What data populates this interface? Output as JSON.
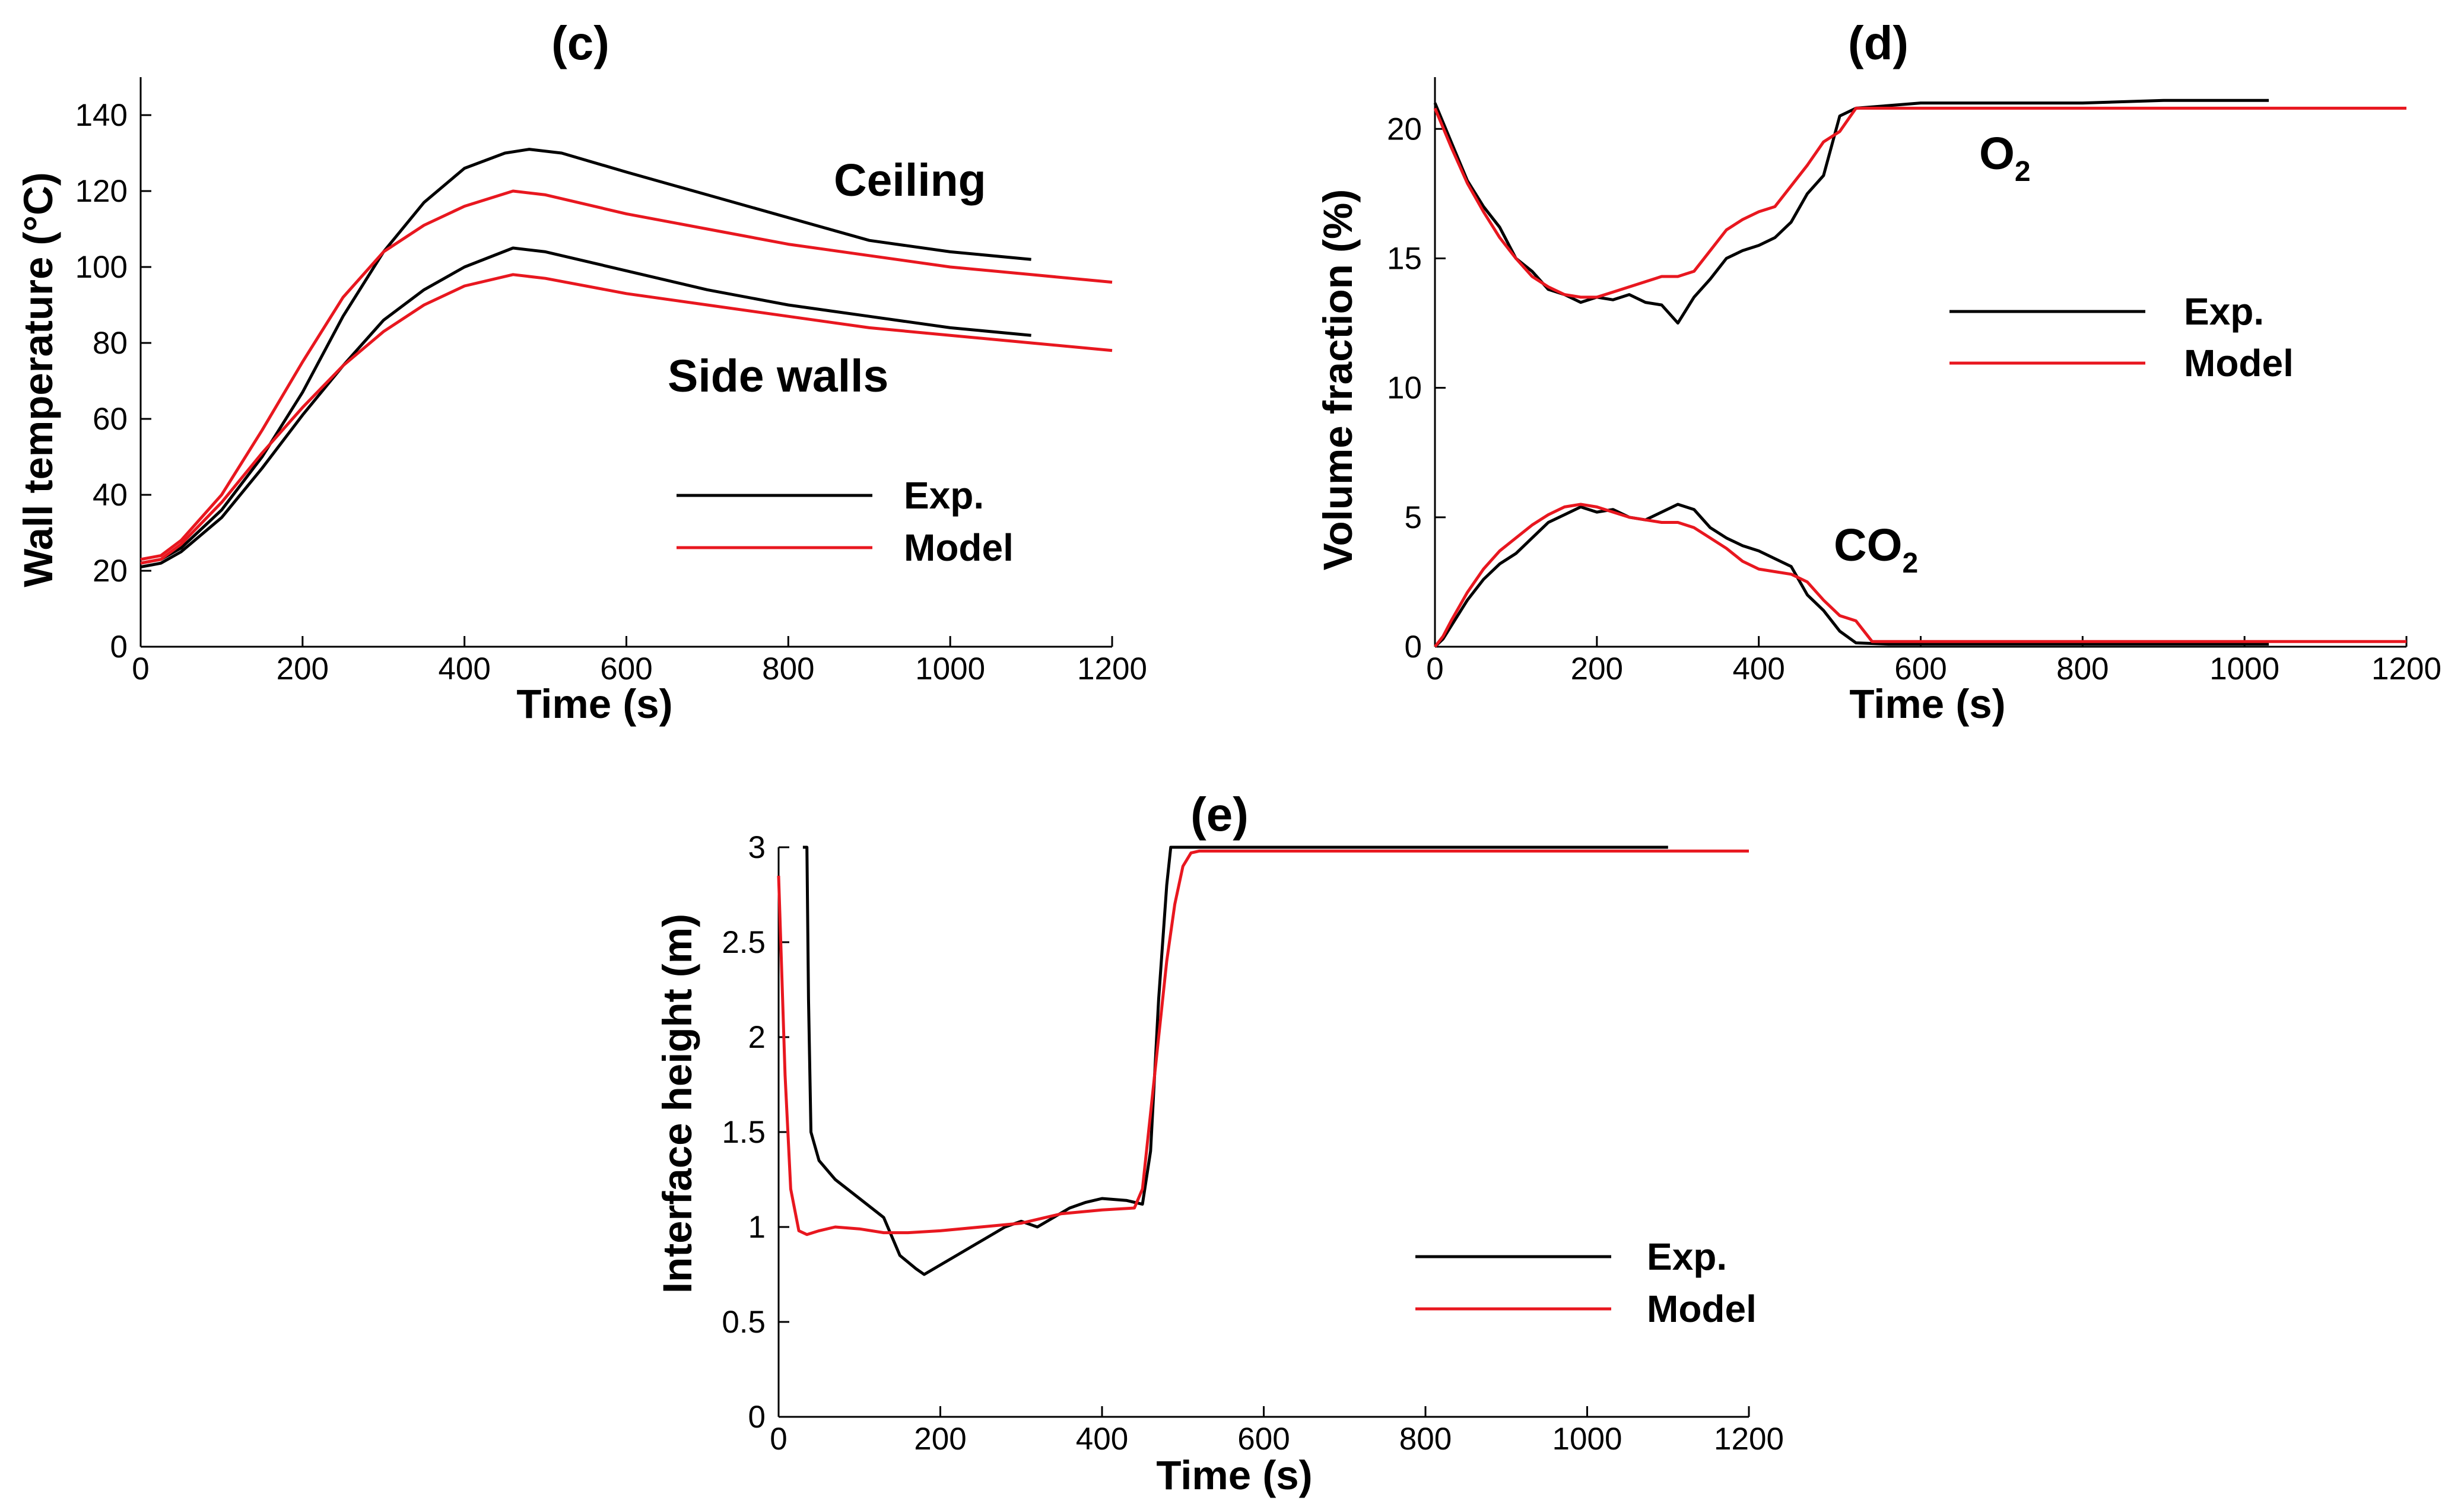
{
  "chart_data": [
    {
      "type": "line",
      "panel": "c",
      "title": "(c)",
      "xlabel": "Time (s)",
      "ylabel": "Wall temperature (°C)",
      "xlim": [
        0,
        1200
      ],
      "ylim": [
        0,
        150
      ],
      "xticks": [
        0,
        200,
        400,
        600,
        800,
        1000,
        1200
      ],
      "yticks": [
        0,
        20,
        40,
        60,
        80,
        100,
        120,
        140
      ],
      "annotations": {
        "ceiling": "Ceiling",
        "side_walls": "Side walls"
      },
      "legend": {
        "exp": "Exp.",
        "model": "Model",
        "position": "center-right"
      },
      "series": [
        {
          "name": "Exp. ceiling",
          "color": "#000000",
          "x": [
            0,
            25,
            50,
            100,
            150,
            200,
            250,
            300,
            350,
            400,
            450,
            480,
            520,
            600,
            700,
            800,
            900,
            1000,
            1100
          ],
          "y": [
            22,
            23,
            26,
            36,
            50,
            67,
            87,
            104,
            117,
            126,
            130,
            131,
            130,
            125,
            119,
            113,
            107,
            104,
            102
          ]
        },
        {
          "name": "Model ceiling",
          "color": "#e8171f",
          "x": [
            0,
            25,
            50,
            100,
            150,
            200,
            250,
            300,
            350,
            400,
            460,
            500,
            600,
            700,
            800,
            900,
            1000,
            1100,
            1200
          ],
          "y": [
            23,
            24,
            28,
            40,
            57,
            75,
            92,
            104,
            111,
            116,
            120,
            119,
            114,
            110,
            106,
            103,
            100,
            98,
            96
          ]
        },
        {
          "name": "Exp. side walls",
          "color": "#000000",
          "x": [
            0,
            25,
            50,
            100,
            150,
            200,
            250,
            300,
            350,
            400,
            460,
            500,
            600,
            700,
            800,
            900,
            1000,
            1100
          ],
          "y": [
            21,
            22,
            25,
            34,
            47,
            61,
            74,
            86,
            94,
            100,
            105,
            104,
            99,
            94,
            90,
            87,
            84,
            82
          ]
        },
        {
          "name": "Model side walls",
          "color": "#e8171f",
          "x": [
            0,
            25,
            50,
            100,
            150,
            200,
            250,
            300,
            350,
            400,
            460,
            500,
            600,
            700,
            800,
            900,
            1000,
            1100,
            1200
          ],
          "y": [
            22,
            23,
            27,
            38,
            51,
            63,
            74,
            83,
            90,
            95,
            98,
            97,
            93,
            90,
            87,
            84,
            82,
            80,
            78
          ]
        }
      ]
    },
    {
      "type": "line",
      "panel": "d",
      "title": "(d)",
      "xlabel": "Time (s)",
      "ylabel": "Volume fraction (%)",
      "xlim": [
        0,
        1200
      ],
      "ylim": [
        0,
        22
      ],
      "xticks": [
        0,
        200,
        400,
        600,
        800,
        1000,
        1200
      ],
      "yticks": [
        0,
        5,
        10,
        15,
        20
      ],
      "annotations": {
        "o2_main": "O",
        "o2_sub": "2",
        "co2_main": "CO",
        "co2_sub": "2"
      },
      "legend": {
        "exp": "Exp.",
        "model": "Model",
        "position": "upper-right"
      },
      "series": [
        {
          "name": "Exp. O2",
          "color": "#000000",
          "x": [
            0,
            20,
            40,
            60,
            80,
            100,
            120,
            140,
            160,
            180,
            200,
            220,
            240,
            260,
            280,
            300,
            320,
            340,
            360,
            380,
            400,
            420,
            440,
            460,
            480,
            500,
            520,
            560,
            600,
            700,
            800,
            900,
            1030
          ],
          "y": [
            21,
            19.5,
            18,
            17,
            16.2,
            15,
            14.5,
            13.8,
            13.6,
            13.3,
            13.5,
            13.4,
            13.6,
            13.3,
            13.2,
            12.5,
            13.5,
            14.2,
            15,
            15.3,
            15.5,
            15.8,
            16.4,
            17.5,
            18.2,
            20.5,
            20.8,
            20.9,
            21.0,
            21.0,
            21.0,
            21.1,
            21.1
          ]
        },
        {
          "name": "Model O2",
          "color": "#e8171f",
          "x": [
            0,
            20,
            40,
            60,
            80,
            100,
            120,
            140,
            160,
            180,
            200,
            220,
            240,
            260,
            280,
            300,
            320,
            340,
            360,
            380,
            400,
            420,
            440,
            460,
            480,
            500,
            520,
            560,
            600,
            800,
            1000,
            1200
          ],
          "y": [
            20.8,
            19.3,
            17.9,
            16.8,
            15.8,
            15.0,
            14.3,
            13.9,
            13.6,
            13.5,
            13.5,
            13.7,
            13.9,
            14.1,
            14.3,
            14.3,
            14.5,
            15.3,
            16.1,
            16.5,
            16.8,
            17.0,
            17.8,
            18.6,
            19.5,
            19.9,
            20.8,
            20.8,
            20.8,
            20.8,
            20.8,
            20.8
          ]
        },
        {
          "name": "Exp. CO2",
          "color": "#000000",
          "x": [
            0,
            10,
            20,
            40,
            60,
            80,
            100,
            120,
            140,
            160,
            180,
            200,
            220,
            240,
            260,
            280,
            300,
            320,
            340,
            360,
            380,
            400,
            420,
            440,
            460,
            480,
            500,
            520,
            560,
            700,
            900,
            1030
          ],
          "y": [
            0,
            0.3,
            0.8,
            1.8,
            2.6,
            3.2,
            3.6,
            4.2,
            4.8,
            5.1,
            5.4,
            5.2,
            5.3,
            5.0,
            4.9,
            5.2,
            5.5,
            5.3,
            4.6,
            4.2,
            3.9,
            3.7,
            3.4,
            3.1,
            2.0,
            1.4,
            0.6,
            0.15,
            0.1,
            0.1,
            0.1,
            0.1
          ]
        },
        {
          "name": "Model CO2",
          "color": "#e8171f",
          "x": [
            0,
            10,
            20,
            40,
            60,
            80,
            100,
            120,
            140,
            160,
            180,
            200,
            220,
            240,
            260,
            280,
            300,
            320,
            340,
            360,
            380,
            400,
            420,
            440,
            460,
            480,
            500,
            520,
            540,
            600,
            800,
            1000,
            1200
          ],
          "y": [
            0,
            0.4,
            1.0,
            2.1,
            3.0,
            3.7,
            4.2,
            4.7,
            5.1,
            5.4,
            5.5,
            5.4,
            5.2,
            5.0,
            4.9,
            4.8,
            4.8,
            4.6,
            4.2,
            3.8,
            3.3,
            3.0,
            2.9,
            2.8,
            2.5,
            1.8,
            1.2,
            1.0,
            0.2,
            0.2,
            0.2,
            0.2,
            0.2
          ]
        }
      ]
    },
    {
      "type": "line",
      "panel": "e",
      "title": "(e)",
      "xlabel": "Time (s)",
      "ylabel": "Interface height (m)",
      "xlim": [
        0,
        1200
      ],
      "ylim": [
        0,
        3
      ],
      "xticks": [
        0,
        200,
        400,
        600,
        800,
        1000,
        1200
      ],
      "yticks": [
        0,
        0.5,
        1,
        1.5,
        2,
        2.5,
        3
      ],
      "legend": {
        "exp": "Exp.",
        "model": "Model",
        "position": "lower-right"
      },
      "series": [
        {
          "name": "Exp.",
          "color": "#000000",
          "x": [
            30,
            35,
            37,
            40,
            50,
            70,
            100,
            130,
            150,
            170,
            180,
            200,
            220,
            240,
            260,
            280,
            300,
            320,
            340,
            360,
            380,
            400,
            430,
            450,
            460,
            470,
            480,
            485,
            600,
            800,
            1000,
            1100
          ],
          "y": [
            3.0,
            3.0,
            2.2,
            1.5,
            1.35,
            1.25,
            1.15,
            1.05,
            0.85,
            0.78,
            0.75,
            0.8,
            0.85,
            0.9,
            0.95,
            1.0,
            1.03,
            1.0,
            1.05,
            1.1,
            1.13,
            1.15,
            1.14,
            1.12,
            1.4,
            2.2,
            2.8,
            3.0,
            3.0,
            3.0,
            3.0,
            3.0
          ]
        },
        {
          "name": "Model",
          "color": "#e8171f",
          "x": [
            0,
            8,
            15,
            25,
            35,
            50,
            70,
            100,
            130,
            160,
            200,
            250,
            300,
            350,
            400,
            440,
            450,
            460,
            470,
            480,
            490,
            500,
            510,
            520,
            600,
            800,
            1000,
            1200
          ],
          "y": [
            2.85,
            1.8,
            1.2,
            0.98,
            0.96,
            0.98,
            1.0,
            0.99,
            0.97,
            0.97,
            0.98,
            1.0,
            1.02,
            1.07,
            1.09,
            1.1,
            1.2,
            1.6,
            2.0,
            2.4,
            2.7,
            2.9,
            2.97,
            2.98,
            2.98,
            2.98,
            2.98,
            2.98
          ]
        }
      ]
    }
  ]
}
